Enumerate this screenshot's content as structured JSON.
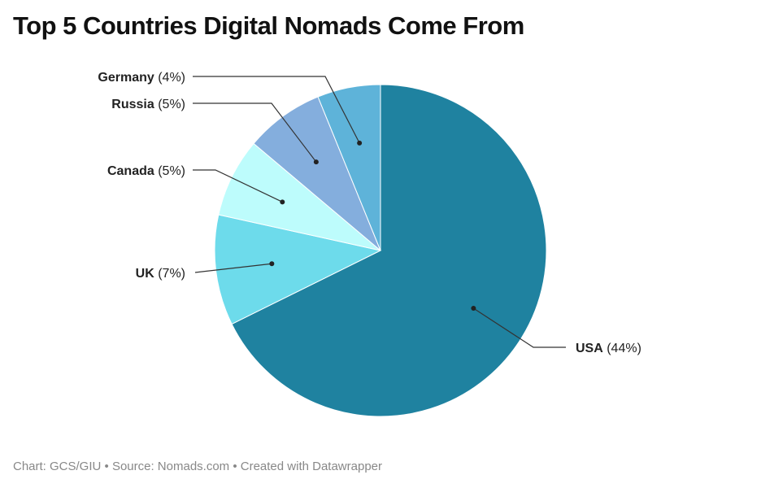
{
  "chart_data": {
    "type": "pie",
    "title": "Top 5 Countries Digital Nomads Come From",
    "slices": [
      {
        "label": "USA",
        "value": 44,
        "display": "(44%)",
        "color": "#1f82a0"
      },
      {
        "label": "UK",
        "value": 7,
        "display": "(7%)",
        "color": "#6ddbeb"
      },
      {
        "label": "Canada",
        "value": 5,
        "display": "(5%)",
        "color": "#bdfcfc"
      },
      {
        "label": "Russia",
        "value": 5,
        "display": "(5%)",
        "color": "#84aedd"
      },
      {
        "label": "Germany",
        "value": 4,
        "display": "(4%)",
        "color": "#5eb3d9"
      }
    ],
    "start": "top",
    "direction": "clockwise"
  },
  "footer": "Chart: GCS/GIU • Source: Nomads.com • Created with Datawrapper"
}
